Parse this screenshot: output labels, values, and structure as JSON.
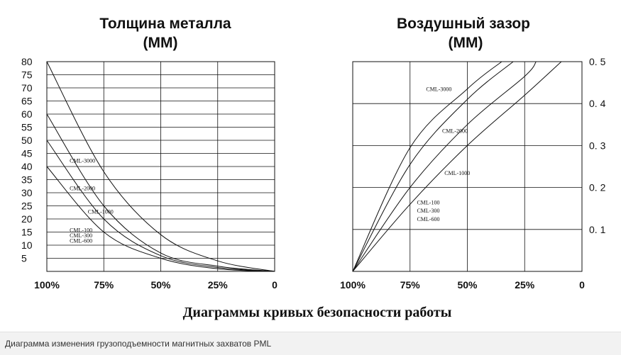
{
  "figure_title": "Диаграммы кривых безопасности работы",
  "caption": "Диаграмма изменения грузоподъемности магнитных захватов PML",
  "colors": {
    "line": "#111111",
    "grid": "#111111",
    "caption_bg": "#f2f2f2",
    "caption_text": "#333333"
  },
  "chart_data": [
    {
      "type": "line",
      "title_line1": "Толщина металла",
      "title_line2": "(ММ)",
      "x_tick_labels": [
        "100%",
        "75%",
        "50%",
        "25%",
        "0"
      ],
      "x": [
        100,
        75,
        50,
        25,
        0
      ],
      "xlim": [
        100,
        0
      ],
      "ylim": [
        0,
        80
      ],
      "y_ticks": [
        5,
        10,
        15,
        20,
        25,
        30,
        35,
        40,
        45,
        50,
        55,
        60,
        65,
        70,
        75,
        80
      ],
      "y_tick_labels": [
        "5",
        "10",
        "15",
        "20",
        "25",
        "30",
        "35",
        "40",
        "45",
        "50",
        "55",
        "60",
        "65",
        "70",
        "75",
        "80"
      ],
      "y_axis_side": "left",
      "grid": true,
      "series": [
        {
          "name": "CML-3000",
          "values": [
            80,
            38,
            14,
            4,
            0
          ]
        },
        {
          "name": "CML-2000",
          "values": [
            60,
            25,
            7,
            2,
            0
          ]
        },
        {
          "name": "CML-1000",
          "values": [
            50,
            20,
            6,
            1.5,
            0
          ]
        },
        {
          "name": "CML-100",
          "values": [
            40,
            15,
            5,
            1,
            0
          ]
        }
      ],
      "series_labels": [
        {
          "text": "CML-3000",
          "x": 90,
          "y": 41.5
        },
        {
          "text": "CML-2000",
          "x": 90,
          "y": 31
        },
        {
          "text": "CML-1000",
          "x": 82,
          "y": 22
        },
        {
          "text": "CML-100",
          "x": 90,
          "y": 15
        },
        {
          "text": "CML-300",
          "x": 90,
          "y": 13
        },
        {
          "text": "CML-600",
          "x": 90,
          "y": 11
        }
      ]
    },
    {
      "type": "line",
      "title_line1": "Воздушный зазор",
      "title_line2": "(ММ)",
      "x_tick_labels": [
        "100%",
        "75%",
        "50%",
        "25%",
        "0"
      ],
      "x": [
        100,
        75,
        50,
        25,
        0
      ],
      "xlim": [
        100,
        0
      ],
      "ylim": [
        0,
        0.5
      ],
      "y_ticks": [
        0.1,
        0.2,
        0.3,
        0.4,
        0.5
      ],
      "y_tick_labels": [
        "0. 1",
        "0. 2",
        "0. 3",
        "0. 4",
        "0. 5"
      ],
      "y_axis_side": "right",
      "grid": true,
      "series": [
        {
          "name": "CML-3000",
          "points": [
            [
              100,
              0
            ],
            [
              75,
              0.295
            ],
            [
              50,
              0.435
            ],
            [
              35,
              0.5
            ]
          ]
        },
        {
          "name": "CML-2000",
          "points": [
            [
              100,
              0
            ],
            [
              75,
              0.255
            ],
            [
              50,
              0.41
            ],
            [
              30,
              0.5
            ]
          ]
        },
        {
          "name": "CML-1000",
          "points": [
            [
              100,
              0
            ],
            [
              75,
              0.2
            ],
            [
              50,
              0.35
            ],
            [
              25,
              0.465
            ],
            [
              20,
              0.5
            ]
          ]
        },
        {
          "name": "CML-100",
          "points": [
            [
              100,
              0
            ],
            [
              75,
              0.16
            ],
            [
              50,
              0.3
            ],
            [
              25,
              0.42
            ],
            [
              9,
              0.5
            ]
          ]
        }
      ],
      "series_labels": [
        {
          "text": "CML-3000",
          "x": 68,
          "y": 0.43
        },
        {
          "text": "CML-2000",
          "x": 61,
          "y": 0.33
        },
        {
          "text": "CML-1000",
          "x": 60,
          "y": 0.23
        },
        {
          "text": "CML-100",
          "x": 72,
          "y": 0.16
        },
        {
          "text": "CML-300",
          "x": 72,
          "y": 0.14
        },
        {
          "text": "CML-600",
          "x": 72,
          "y": 0.12
        }
      ]
    }
  ]
}
